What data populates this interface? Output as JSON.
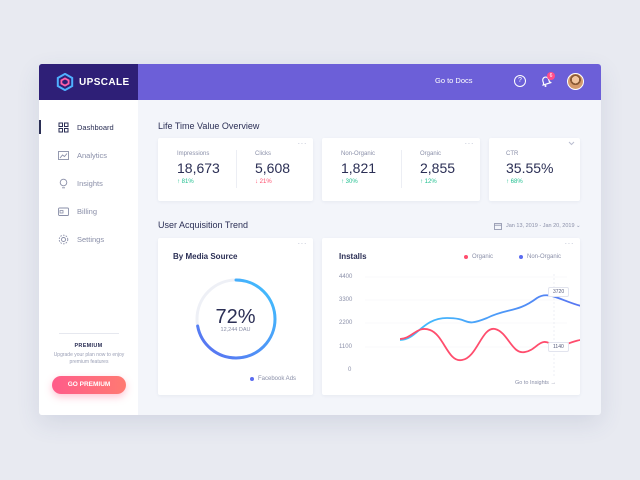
{
  "brand": {
    "name": "UPSCALE"
  },
  "header": {
    "docs_label": "Go to Docs",
    "help_label": "?",
    "notification_count": "6"
  },
  "sidebar": {
    "items": [
      {
        "label": "Dashboard",
        "icon": "grid-icon"
      },
      {
        "label": "Analytics",
        "icon": "chart-icon"
      },
      {
        "label": "Insights",
        "icon": "lightbulb-icon"
      },
      {
        "label": "Billing",
        "icon": "wallet-icon"
      },
      {
        "label": "Settings",
        "icon": "gear-icon"
      }
    ],
    "premium": {
      "title": "PREMIUM",
      "text": "Upgrade your plan now to enjoy premium features",
      "button": "GO PREMIUM"
    }
  },
  "ltv": {
    "title": "Life Time Value Overview",
    "impressions": {
      "label": "Impressions",
      "value": "18,673",
      "delta": "↑ 81%"
    },
    "clicks": {
      "label": "Clicks",
      "value": "5,608",
      "delta": "↓ 21%"
    },
    "non_organic": {
      "label": "Non-Organic",
      "value": "1,821",
      "delta": "↑ 30%"
    },
    "organic": {
      "label": "Organic",
      "value": "2,855",
      "delta": "↑ 12%"
    },
    "ctr": {
      "label": "CTR",
      "value": "35.55%",
      "delta": "↑ 68%"
    },
    "menu_dots": "···"
  },
  "acquisition": {
    "title": "User Acquisition Trend",
    "date_range": "Jan 13, 2019 - Jan 20, 2019 ⌄",
    "media": {
      "title": "By Media Source",
      "percent": "72%",
      "percent_value": 72,
      "sub": "12,244 DAU",
      "legend": "Facebook Ads"
    },
    "installs": {
      "title": "Installs",
      "legend": [
        "Organic",
        "Non-Organic"
      ],
      "yticks": [
        "4400",
        "3300",
        "2200",
        "1100",
        "0"
      ],
      "tooltip_non_organic": "3720",
      "tooltip_organic": "1140",
      "insights_link": "Go to Insights →"
    }
  },
  "colors": {
    "accent": "#6c5fd8",
    "brand_dark": "#2e1f77",
    "organic": "#ff4d6d",
    "non_organic": "#5b6cf0",
    "non_organic_start": "#3fc4ff"
  }
}
